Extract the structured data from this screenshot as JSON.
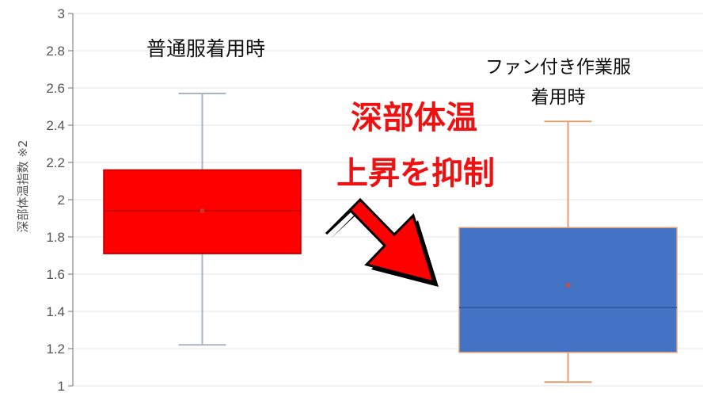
{
  "chart_data": {
    "type": "box",
    "ylabel": "深部体温指数 ※2",
    "ylim": [
      1,
      3
    ],
    "yticks": [
      1,
      1.2,
      1.4,
      1.6,
      1.8,
      2,
      2.2,
      2.4,
      2.6,
      2.8,
      3
    ],
    "ytick_labels": [
      "1",
      "1.2",
      "1.4",
      "1.6",
      "1.8",
      "2",
      "2.2",
      "2.4",
      "2.6",
      "2.8",
      "3"
    ],
    "grid": true,
    "series": [
      {
        "label_lines": [
          "普通服着用時"
        ],
        "whisker_low": 1.22,
        "q1": 1.71,
        "median": 1.94,
        "q3": 2.16,
        "whisker_high": 2.57,
        "mean": 1.94,
        "fill": "#ff0000",
        "whisker_color": "#a8b4c8"
      },
      {
        "label_lines": [
          "ファン付き作業服",
          "着用時"
        ],
        "whisker_low": 1.02,
        "q1": 1.18,
        "median": 1.42,
        "q3": 1.85,
        "whisker_high": 2.42,
        "mean": 1.54,
        "fill": "#4472c4",
        "whisker_color": "#e0a070"
      }
    ],
    "annotation": {
      "lines": [
        "深部体温",
        "上昇を抑制"
      ],
      "color": "#ee1111"
    },
    "arrow": {
      "fill": "#ff0000",
      "stroke": "#000000",
      "icon": "down-right-arrow-icon"
    }
  }
}
